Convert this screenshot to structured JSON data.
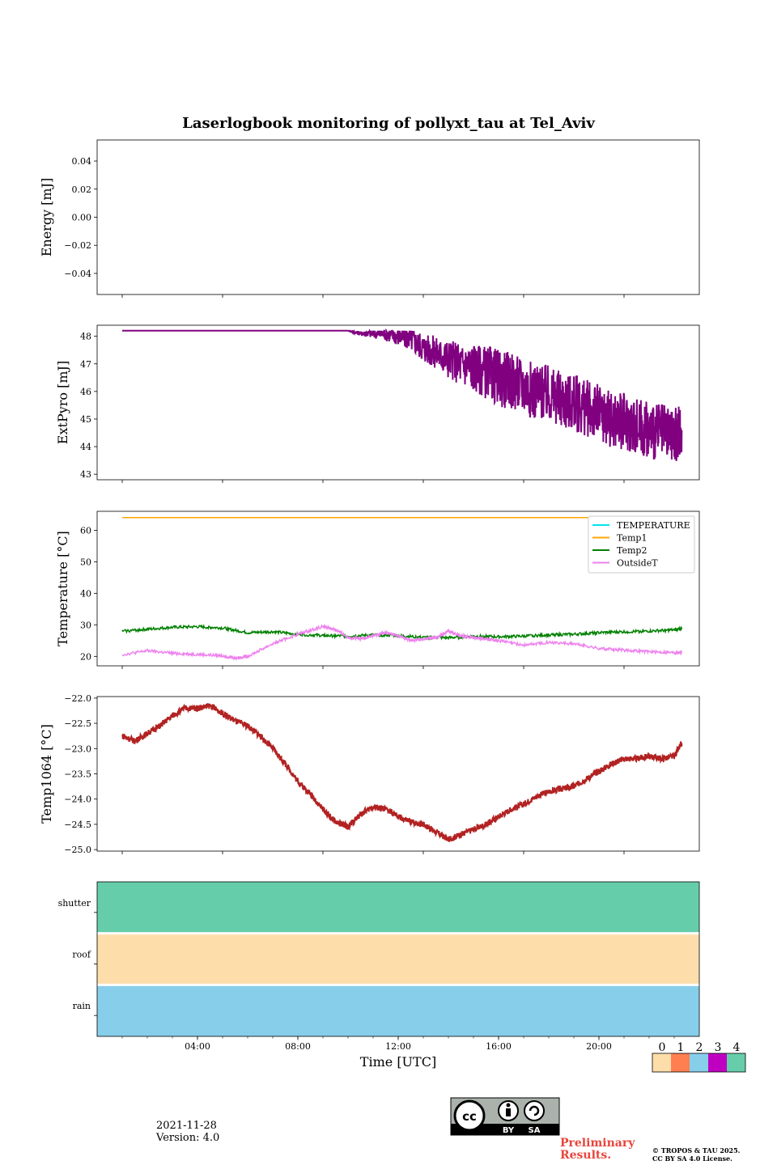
{
  "figure": {
    "title": "Laserlogbook monitoring of pollyxt_tau at Tel_Aviv",
    "date": "2021-11-28",
    "version": "Version: 4.0",
    "preliminary": [
      "Preliminary",
      "Results."
    ],
    "copyright": [
      "© TROPOS & TAU 2025.",
      "CC BY SA 4.0 License."
    ],
    "license_badge": {
      "by": "BY",
      "sa": "SA"
    }
  },
  "chart_data": [
    {
      "type": "line",
      "ylabel": "Energy [mJ]",
      "ylim": [
        -0.055,
        0.055
      ],
      "yticks": [
        0.04,
        0.02,
        0.0,
        -0.02,
        -0.04
      ],
      "ytick_labels": [
        "0.04",
        "0.02",
        "0.00",
        "−0.02",
        "−0.04"
      ],
      "xlim_hours": [
        0,
        24
      ],
      "series": []
    },
    {
      "type": "line",
      "ylabel": "ExtPyro [mJ]",
      "ylim": [
        42.8,
        48.4
      ],
      "yticks": [
        48,
        47,
        46,
        45,
        44,
        43
      ],
      "ytick_labels": [
        "48",
        "47",
        "46",
        "45",
        "44",
        "43"
      ],
      "xlim_hours": [
        0,
        24
      ],
      "series": [
        {
          "color": "#800080",
          "x_hours": [
            1,
            10,
            10.5,
            11,
            11.5,
            12,
            12.5,
            13,
            13.5,
            14,
            14.5,
            15,
            15.5,
            16,
            16.5,
            17,
            17.5,
            18,
            18.5,
            19,
            19.5,
            20,
            20.5,
            21,
            21.5,
            22,
            22.5,
            23,
            23.3
          ],
          "y": [
            48.2,
            48.2,
            48.1,
            48.1,
            48.1,
            48.0,
            47.9,
            47.6,
            47.4,
            47.2,
            47.0,
            46.9,
            46.7,
            46.5,
            46.4,
            46.2,
            46.0,
            45.9,
            45.7,
            45.6,
            45.4,
            45.2,
            45.0,
            44.9,
            44.7,
            44.6,
            44.5,
            44.3,
            44.6
          ]
        }
      ]
    },
    {
      "type": "line",
      "ylabel": "Temperature [°C]",
      "ylim": [
        17,
        66
      ],
      "yticks": [
        60,
        50,
        40,
        30,
        20
      ],
      "ytick_labels": [
        "60",
        "50",
        "40",
        "30",
        "20"
      ],
      "xlim_hours": [
        0,
        24
      ],
      "legend": "top-right",
      "series": [
        {
          "name": "TEMPERATURE",
          "color": "#00e5ee",
          "x_hours": [],
          "y": []
        },
        {
          "name": "Temp1",
          "color": "#ffa500",
          "x_hours": [
            1,
            23.3
          ],
          "y": [
            64,
            64
          ]
        },
        {
          "name": "Temp2",
          "color": "#008000",
          "x_hours": [
            1,
            2,
            3,
            4,
            5,
            6,
            7,
            8,
            9,
            10,
            11,
            12,
            13,
            14,
            15,
            16,
            17,
            18,
            19,
            20,
            21,
            22,
            23,
            23.3
          ],
          "y": [
            28,
            28.6,
            29.2,
            29.4,
            29.0,
            27.5,
            27.8,
            27.0,
            26.6,
            26.4,
            26.8,
            26.6,
            26.0,
            25.9,
            26.4,
            26.2,
            26.4,
            26.8,
            27.0,
            27.5,
            27.8,
            28.0,
            28.4,
            28.8
          ]
        },
        {
          "name": "OutsideT",
          "color": "#ee82ee",
          "x_hours": [
            1,
            2,
            3,
            4,
            5,
            5.5,
            6,
            7,
            8,
            9,
            9.5,
            10,
            10.5,
            11,
            11.5,
            12,
            12.5,
            13,
            13.5,
            14,
            14.5,
            15,
            15.5,
            16,
            17,
            18,
            19,
            20,
            21,
            22,
            23,
            23.3
          ],
          "y": [
            20.5,
            21.8,
            21,
            20.6,
            20.2,
            19.5,
            20,
            24,
            27,
            29.5,
            28.5,
            26,
            25.5,
            26.5,
            27.5,
            26.5,
            25,
            25.5,
            26,
            28,
            26.5,
            26,
            25.5,
            25,
            23.5,
            24.5,
            24,
            22.5,
            22,
            21.5,
            21.2,
            21.3
          ]
        }
      ]
    },
    {
      "type": "line",
      "ylabel": "Temp1064 [°C]",
      "ylim": [
        -25.03,
        -21.97
      ],
      "yticks": [
        -22.0,
        -22.5,
        -23.0,
        -23.5,
        -24.0,
        -24.5,
        -25.0
      ],
      "ytick_labels": [
        "−22.0",
        "−22.5",
        "−23.0",
        "−23.5",
        "−24.0",
        "−24.5",
        "−25.0"
      ],
      "xlim_hours": [
        0,
        24
      ],
      "series": [
        {
          "color": "#b22222",
          "x_hours": [
            1,
            1.5,
            2,
            2.5,
            3,
            3.5,
            4,
            4.5,
            5,
            5.5,
            6,
            6.5,
            7,
            7.5,
            8,
            8.5,
            9,
            9.5,
            10,
            10.5,
            11,
            11.5,
            12,
            12.5,
            13,
            13.5,
            14,
            14.5,
            15,
            15.5,
            16,
            16.5,
            17,
            17.5,
            18,
            18.5,
            19,
            19.5,
            20,
            20.5,
            21,
            21.5,
            22,
            22.5,
            23,
            23.3
          ],
          "y": [
            -22.75,
            -22.85,
            -22.7,
            -22.55,
            -22.35,
            -22.2,
            -22.2,
            -22.15,
            -22.3,
            -22.45,
            -22.55,
            -22.75,
            -23.0,
            -23.3,
            -23.65,
            -23.9,
            -24.2,
            -24.45,
            -24.55,
            -24.3,
            -24.15,
            -24.2,
            -24.35,
            -24.45,
            -24.5,
            -24.65,
            -24.8,
            -24.7,
            -24.6,
            -24.5,
            -24.35,
            -24.2,
            -24.1,
            -23.95,
            -23.85,
            -23.8,
            -23.75,
            -23.6,
            -23.45,
            -23.3,
            -23.2,
            -23.2,
            -23.15,
            -23.2,
            -23.15,
            -22.9
          ]
        }
      ]
    },
    {
      "type": "heatmap",
      "rows": [
        "shutter",
        "roof",
        "rain"
      ],
      "row_status": [
        4,
        0,
        2
      ],
      "xlim_hours": [
        0,
        24
      ],
      "xticks_hours": [
        4,
        8,
        12,
        16,
        20
      ],
      "xtick_labels": [
        "04:00",
        "08:00",
        "12:00",
        "16:00",
        "20:00"
      ],
      "xlabel": "Time [UTC]",
      "colorbar": {
        "labels": [
          "0",
          "1",
          "2",
          "3",
          "4"
        ],
        "colors": [
          "#fdddaa",
          "#ff7f50",
          "#87ceeb",
          "#c000c0",
          "#66cdaa"
        ]
      }
    }
  ]
}
